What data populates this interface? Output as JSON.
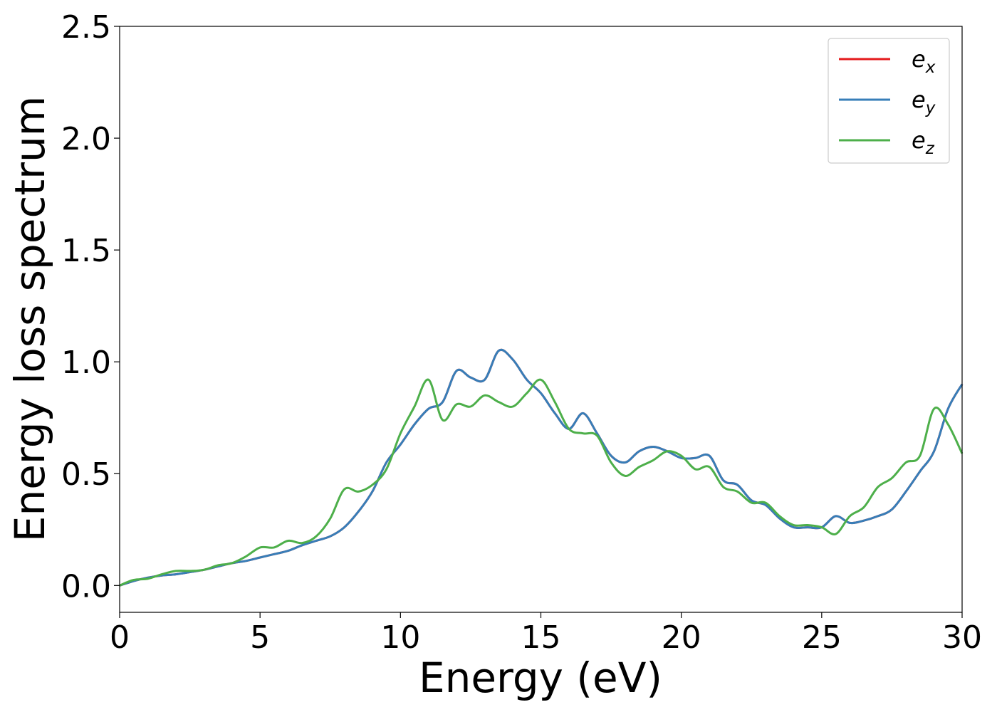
{
  "chart_data": {
    "type": "line",
    "title": "",
    "xlabel": "Energy (eV)",
    "ylabel": "Energy loss spectrum",
    "xlim": [
      0,
      30
    ],
    "ylim": [
      -0.12,
      2.5
    ],
    "x_ticks": [
      0,
      5,
      10,
      15,
      20,
      25,
      30
    ],
    "x_tick_labels": [
      "0",
      "5",
      "10",
      "15",
      "20",
      "25",
      "30"
    ],
    "y_ticks": [
      0.0,
      0.5,
      1.0,
      1.5,
      2.0,
      2.5
    ],
    "y_tick_labels": [
      "0.0",
      "0.5",
      "1.0",
      "1.5",
      "2.0",
      "2.5"
    ],
    "grid": false,
    "legend": {
      "position": "top-right"
    },
    "series": [
      {
        "name": "ex",
        "label_main": "e",
        "label_sub": "x",
        "color": "#e41a1c",
        "x": [
          0,
          0.5,
          1,
          1.5,
          2,
          2.5,
          3,
          3.5,
          4,
          4.5,
          5,
          5.5,
          6,
          6.5,
          7,
          7.5,
          8,
          8.5,
          9,
          9.5,
          10,
          10.5,
          11,
          11.5,
          12,
          12.5,
          13,
          13.5,
          14,
          14.5,
          15,
          15.5,
          16,
          16.5,
          17,
          17.5,
          18,
          18.5,
          19,
          19.5,
          20,
          20.5,
          21,
          21.5,
          22,
          22.5,
          23,
          23.5,
          24,
          24.5,
          25,
          25.5,
          26,
          26.5,
          27,
          27.5,
          28,
          28.5,
          29,
          29.5,
          30
        ],
        "y": [
          0,
          0.02,
          0.035,
          0.045,
          0.05,
          0.06,
          0.07,
          0.085,
          0.1,
          0.11,
          0.125,
          0.14,
          0.155,
          0.18,
          0.2,
          0.22,
          0.26,
          0.33,
          0.42,
          0.55,
          0.63,
          0.72,
          0.79,
          0.82,
          0.96,
          0.93,
          0.92,
          1.05,
          1.01,
          0.92,
          0.86,
          0.77,
          0.7,
          0.77,
          0.68,
          0.58,
          0.55,
          0.6,
          0.62,
          0.6,
          0.57,
          0.57,
          0.58,
          0.47,
          0.45,
          0.38,
          0.36,
          0.3,
          0.26,
          0.26,
          0.26,
          0.31,
          0.28,
          0.29,
          0.31,
          0.34,
          0.42,
          0.51,
          0.6,
          0.79,
          0.9
        ]
      },
      {
        "name": "ey",
        "label_main": "e",
        "label_sub": "y",
        "color": "#377eb8",
        "x": [
          0,
          0.5,
          1,
          1.5,
          2,
          2.5,
          3,
          3.5,
          4,
          4.5,
          5,
          5.5,
          6,
          6.5,
          7,
          7.5,
          8,
          8.5,
          9,
          9.5,
          10,
          10.5,
          11,
          11.5,
          12,
          12.5,
          13,
          13.5,
          14,
          14.5,
          15,
          15.5,
          16,
          16.5,
          17,
          17.5,
          18,
          18.5,
          19,
          19.5,
          20,
          20.5,
          21,
          21.5,
          22,
          22.5,
          23,
          23.5,
          24,
          24.5,
          25,
          25.5,
          26,
          26.5,
          27,
          27.5,
          28,
          28.5,
          29,
          29.5,
          30
        ],
        "y": [
          0,
          0.02,
          0.035,
          0.045,
          0.05,
          0.06,
          0.07,
          0.085,
          0.1,
          0.11,
          0.125,
          0.14,
          0.155,
          0.18,
          0.2,
          0.22,
          0.26,
          0.33,
          0.42,
          0.55,
          0.63,
          0.72,
          0.79,
          0.82,
          0.96,
          0.93,
          0.92,
          1.05,
          1.01,
          0.92,
          0.86,
          0.77,
          0.7,
          0.77,
          0.68,
          0.58,
          0.55,
          0.6,
          0.62,
          0.6,
          0.57,
          0.57,
          0.58,
          0.47,
          0.45,
          0.38,
          0.36,
          0.3,
          0.26,
          0.26,
          0.26,
          0.31,
          0.28,
          0.29,
          0.31,
          0.34,
          0.42,
          0.51,
          0.6,
          0.79,
          0.9
        ]
      },
      {
        "name": "ez",
        "label_main": "e",
        "label_sub": "z",
        "color": "#4daf4a",
        "x": [
          0,
          0.5,
          1,
          1.5,
          2,
          2.5,
          3,
          3.5,
          4,
          4.5,
          5,
          5.5,
          6,
          6.5,
          7,
          7.5,
          8,
          8.5,
          9,
          9.5,
          10,
          10.5,
          11,
          11.5,
          12,
          12.5,
          13,
          13.5,
          14,
          14.5,
          15,
          15.5,
          16,
          16.5,
          17,
          17.5,
          18,
          18.5,
          19,
          19.5,
          20,
          20.5,
          21,
          21.5,
          22,
          22.5,
          23,
          23.5,
          24,
          24.5,
          25,
          25.5,
          26,
          26.5,
          27,
          27.5,
          28,
          28.5,
          29,
          29.5,
          30
        ],
        "y": [
          0,
          0.025,
          0.03,
          0.05,
          0.065,
          0.065,
          0.07,
          0.09,
          0.1,
          0.13,
          0.17,
          0.17,
          0.2,
          0.19,
          0.22,
          0.3,
          0.43,
          0.42,
          0.45,
          0.52,
          0.68,
          0.8,
          0.92,
          0.74,
          0.81,
          0.8,
          0.85,
          0.82,
          0.8,
          0.86,
          0.92,
          0.82,
          0.7,
          0.68,
          0.67,
          0.55,
          0.49,
          0.53,
          0.56,
          0.6,
          0.58,
          0.52,
          0.53,
          0.44,
          0.42,
          0.37,
          0.37,
          0.31,
          0.27,
          0.27,
          0.26,
          0.23,
          0.31,
          0.35,
          0.44,
          0.48,
          0.55,
          0.58,
          0.79,
          0.72,
          0.59
        ]
      }
    ]
  }
}
